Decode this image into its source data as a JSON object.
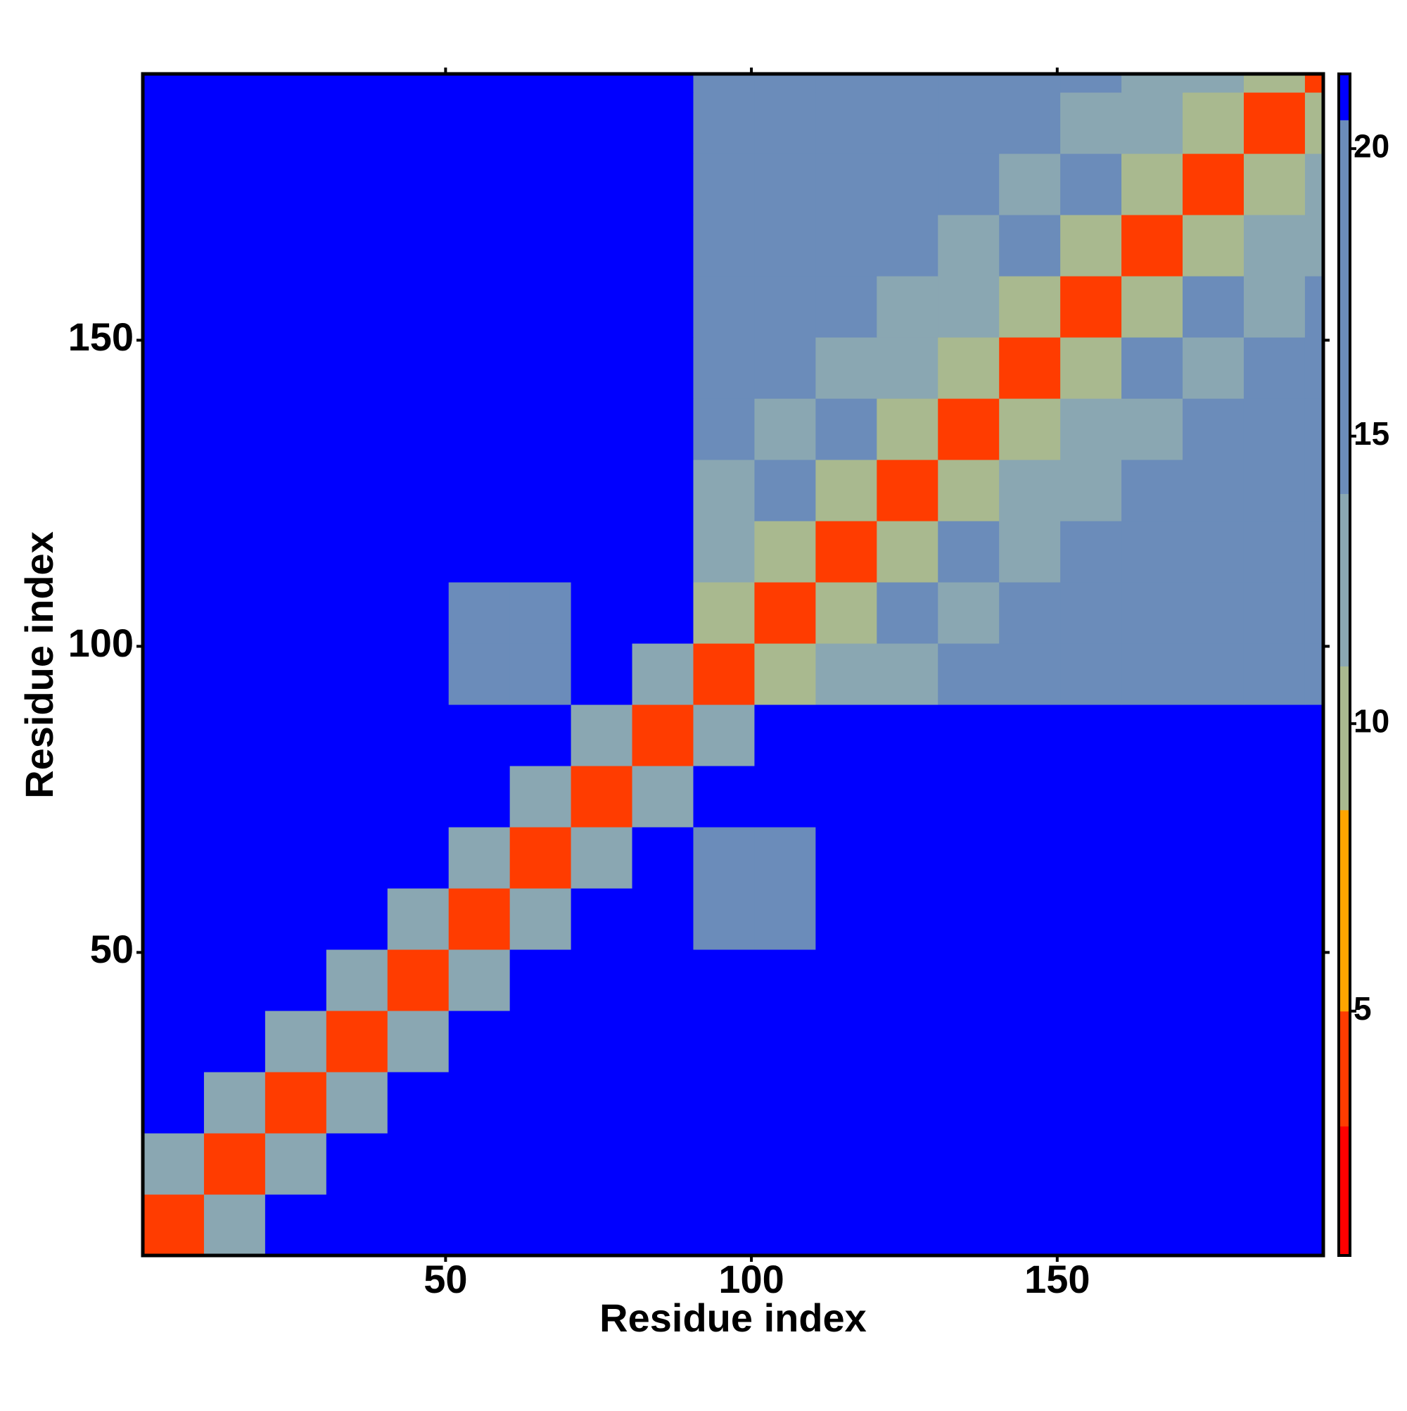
{
  "chart_data": {
    "type": "heatmap",
    "xlabel": "Residue index",
    "ylabel": "Residue index",
    "x_bins": [
      0.5,
      10.5,
      20.5,
      30.5,
      40.5,
      50.5,
      60.5,
      70.5,
      80.5,
      90.5,
      100.5,
      110.5,
      120.5,
      130.5,
      140.5,
      150.5,
      160.5,
      170.5,
      180.5,
      190.5,
      193.5
    ],
    "y_bins": [
      0.5,
      10.5,
      20.5,
      30.5,
      40.5,
      50.5,
      60.5,
      70.5,
      80.5,
      90.5,
      100.5,
      110.5,
      120.5,
      130.5,
      140.5,
      150.5,
      160.5,
      170.5,
      180.5,
      190.5,
      193.5
    ],
    "z": [
      [
        4,
        12,
        21,
        21,
        21,
        21,
        21,
        21,
        21,
        21,
        21,
        21,
        21,
        21,
        21,
        21,
        21,
        21,
        21,
        21
      ],
      [
        12,
        4,
        12,
        21,
        21,
        21,
        21,
        21,
        21,
        21,
        21,
        21,
        21,
        21,
        21,
        21,
        21,
        21,
        21,
        21
      ],
      [
        21,
        12,
        4,
        12,
        21,
        21,
        21,
        21,
        21,
        21,
        21,
        21,
        21,
        21,
        21,
        21,
        21,
        21,
        21,
        21
      ],
      [
        21,
        21,
        12,
        4,
        12,
        21,
        21,
        21,
        21,
        21,
        21,
        21,
        21,
        21,
        21,
        21,
        21,
        21,
        21,
        21
      ],
      [
        21,
        21,
        21,
        12,
        4,
        12,
        21,
        21,
        21,
        21,
        21,
        21,
        21,
        21,
        21,
        21,
        21,
        21,
        21,
        21
      ],
      [
        21,
        21,
        21,
        21,
        12,
        4,
        12,
        21,
        21,
        20,
        20,
        21,
        21,
        21,
        21,
        21,
        21,
        21,
        21,
        21
      ],
      [
        21,
        21,
        21,
        21,
        21,
        12,
        4,
        12,
        21,
        20,
        20,
        21,
        21,
        21,
        21,
        21,
        21,
        21,
        21,
        21
      ],
      [
        21,
        21,
        21,
        21,
        21,
        21,
        12,
        4,
        12,
        21,
        21,
        21,
        21,
        21,
        21,
        21,
        21,
        21,
        21,
        21
      ],
      [
        21,
        21,
        21,
        21,
        21,
        21,
        21,
        12,
        4,
        12,
        21,
        21,
        21,
        21,
        21,
        21,
        21,
        21,
        21,
        21
      ],
      [
        21,
        21,
        21,
        21,
        21,
        20,
        20,
        21,
        12,
        4,
        10,
        13,
        13,
        15,
        15,
        15,
        19,
        19,
        19,
        19
      ],
      [
        21,
        21,
        21,
        21,
        21,
        20,
        20,
        21,
        21,
        10,
        4,
        10,
        20,
        13,
        15,
        15,
        15,
        19,
        19,
        19
      ],
      [
        21,
        21,
        21,
        21,
        21,
        21,
        21,
        21,
        21,
        13,
        10,
        4,
        10,
        20,
        13,
        15,
        15,
        15,
        19,
        19
      ],
      [
        21,
        21,
        21,
        21,
        21,
        21,
        21,
        21,
        21,
        13,
        20,
        10,
        4,
        10,
        13,
        13,
        15,
        15,
        15,
        19
      ],
      [
        21,
        21,
        21,
        21,
        21,
        21,
        21,
        21,
        21,
        15,
        13,
        20,
        10,
        4,
        10,
        13,
        13,
        15,
        15,
        15
      ],
      [
        21,
        21,
        21,
        21,
        21,
        21,
        21,
        21,
        21,
        15,
        15,
        13,
        13,
        10,
        4,
        10,
        20,
        13,
        15,
        15
      ],
      [
        21,
        21,
        21,
        21,
        21,
        21,
        21,
        21,
        21,
        15,
        15,
        15,
        13,
        13,
        10,
        4,
        10,
        20,
        13,
        15
      ],
      [
        21,
        21,
        21,
        21,
        21,
        21,
        21,
        21,
        21,
        19,
        15,
        15,
        15,
        13,
        20,
        10,
        4,
        10,
        13,
        13
      ],
      [
        21,
        21,
        21,
        21,
        21,
        21,
        21,
        21,
        21,
        19,
        19,
        15,
        15,
        15,
        13,
        20,
        10,
        4,
        10,
        13
      ],
      [
        21,
        21,
        21,
        21,
        21,
        21,
        21,
        21,
        21,
        19,
        19,
        19,
        15,
        15,
        15,
        13,
        13,
        10,
        4,
        10
      ],
      [
        21,
        21,
        21,
        21,
        21,
        21,
        21,
        21,
        21,
        19,
        19,
        19,
        19,
        15,
        15,
        15,
        13,
        13,
        10,
        4
      ]
    ],
    "xlim": [
      0.5,
      193.5
    ],
    "ylim": [
      0.5,
      193.5
    ],
    "xticks": [
      50,
      100,
      150
    ],
    "yticks": [
      50,
      100,
      150
    ],
    "clim": [
      0.75,
      21.3
    ],
    "cticks": [
      5,
      10,
      15,
      20
    ],
    "color_bounds": [
      0.75,
      3,
      5,
      8.5,
      11,
      14,
      20.5,
      21.3
    ],
    "color_list": [
      "#ff0000",
      "#ff3c00",
      "#ffa500",
      "#a9b98f",
      "#8aa7b2",
      "#6b8cba",
      "#0000ff"
    ]
  }
}
